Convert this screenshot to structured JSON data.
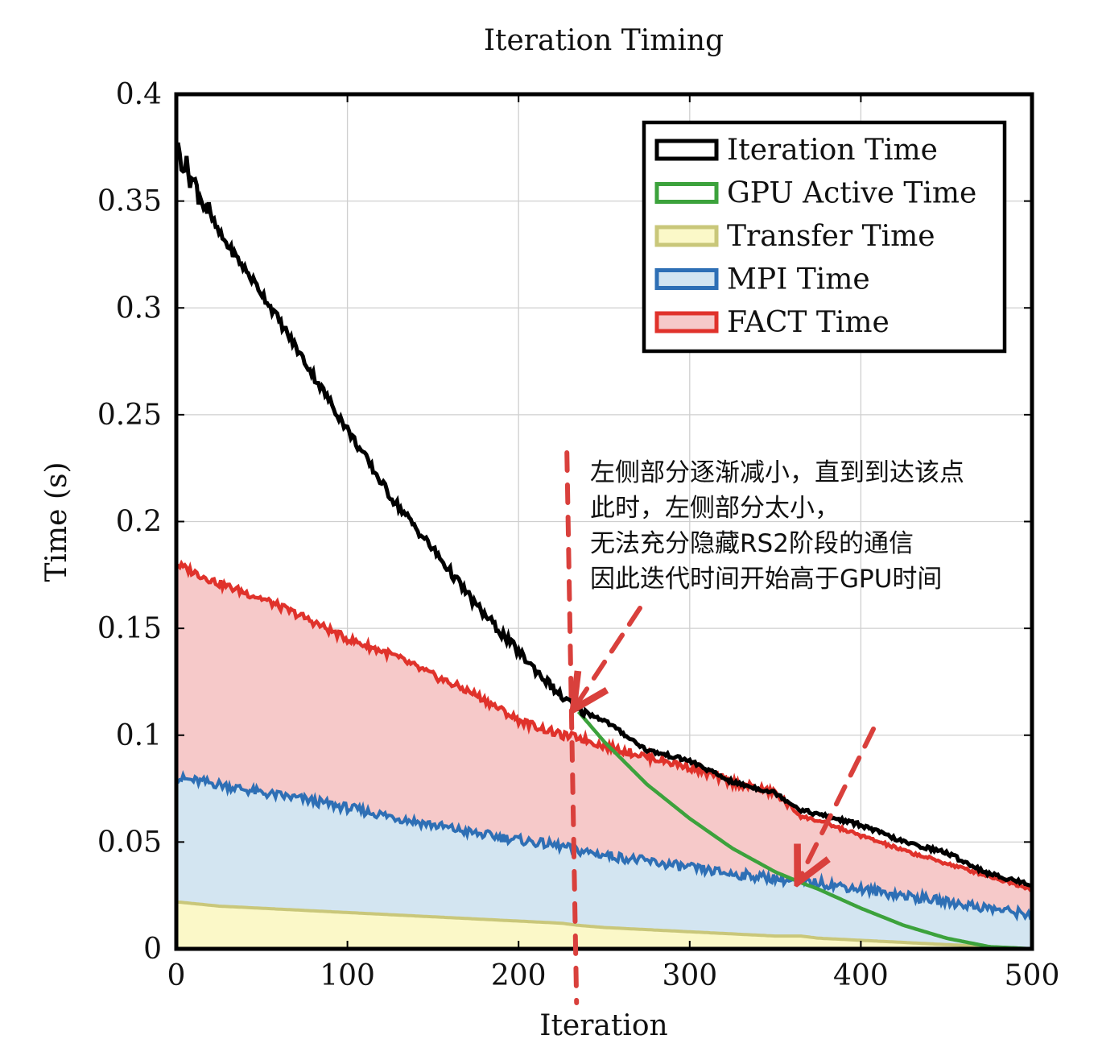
{
  "chart_data": {
    "type": "area",
    "title": "Iteration Timing",
    "xlabel": "Iteration",
    "ylabel": "Time (s)",
    "xlim": [
      0,
      500
    ],
    "ylim": [
      0,
      0.4
    ],
    "xticks": [
      0,
      100,
      200,
      300,
      400,
      500
    ],
    "xtick_labels": [
      "0",
      "100",
      "200",
      "300",
      "400",
      "500"
    ],
    "yticks": [
      0,
      0.05,
      0.1,
      0.15,
      0.2,
      0.25,
      0.3,
      0.35,
      0.4
    ],
    "ytick_labels": [
      "0",
      "0.05",
      "0.1",
      "0.15",
      "0.2",
      "0.25",
      "0.3",
      "0.35",
      "0.4"
    ],
    "grid": true,
    "legend_position": "top-right",
    "x": [
      0,
      25,
      50,
      75,
      100,
      125,
      150,
      175,
      200,
      225,
      235,
      250,
      275,
      300,
      325,
      350,
      365,
      375,
      400,
      425,
      450,
      475,
      500
    ],
    "series": [
      {
        "name": "Iteration Time",
        "color": "#000000",
        "fill": "none",
        "values": [
          0.375,
          0.335,
          0.307,
          0.275,
          0.243,
          0.212,
          0.187,
          0.161,
          0.139,
          0.118,
          0.112,
          0.107,
          0.093,
          0.088,
          0.078,
          0.073,
          0.065,
          0.063,
          0.058,
          0.05,
          0.045,
          0.035,
          0.03
        ]
      },
      {
        "name": "GPU Active Time",
        "color": "#3ca23c",
        "fill": "none",
        "values": [
          null,
          null,
          null,
          null,
          null,
          null,
          null,
          null,
          null,
          null,
          0.111,
          0.097,
          0.077,
          0.061,
          0.047,
          0.036,
          0.031,
          0.028,
          0.019,
          0.011,
          0.005,
          0.001,
          0.0
        ]
      },
      {
        "name": "Transfer Time",
        "color": "#c9c77a",
        "fill": "#fbf8c8",
        "values": [
          0.022,
          0.02,
          0.019,
          0.018,
          0.017,
          0.016,
          0.015,
          0.014,
          0.013,
          0.012,
          0.011,
          0.01,
          0.009,
          0.008,
          0.007,
          0.006,
          0.006,
          0.005,
          0.004,
          0.003,
          0.002,
          0.001,
          0.0
        ]
      },
      {
        "name": "MPI Time",
        "color": "#2e6fb5",
        "fill": "#d3e5f1",
        "values": [
          0.08,
          0.077,
          0.073,
          0.07,
          0.066,
          0.062,
          0.058,
          0.054,
          0.051,
          0.048,
          0.046,
          0.044,
          0.041,
          0.038,
          0.035,
          0.033,
          0.031,
          0.031,
          0.028,
          0.025,
          0.022,
          0.019,
          0.016
        ]
      },
      {
        "name": "FACT Time",
        "color": "#e0322b",
        "fill": "#f6c9c9",
        "values": [
          0.18,
          0.171,
          0.164,
          0.155,
          0.145,
          0.138,
          0.128,
          0.119,
          0.107,
          0.1,
          0.099,
          0.095,
          0.09,
          0.085,
          0.078,
          0.073,
          0.062,
          0.06,
          0.053,
          0.046,
          0.04,
          0.034,
          0.028
        ]
      }
    ],
    "annotation": {
      "lines": [
        "左侧部分逐渐减小，直到到达该点",
        "此时，左侧部分太小，",
        "无法充分隐藏RS2阶段的通信",
        "因此迭代时间开始高于GPU时间"
      ],
      "color": "#d9403c",
      "marker_x": 232,
      "arrow_targets": [
        {
          "x": 232,
          "y": 0.112
        },
        {
          "x": 363,
          "y": 0.031
        }
      ]
    }
  }
}
